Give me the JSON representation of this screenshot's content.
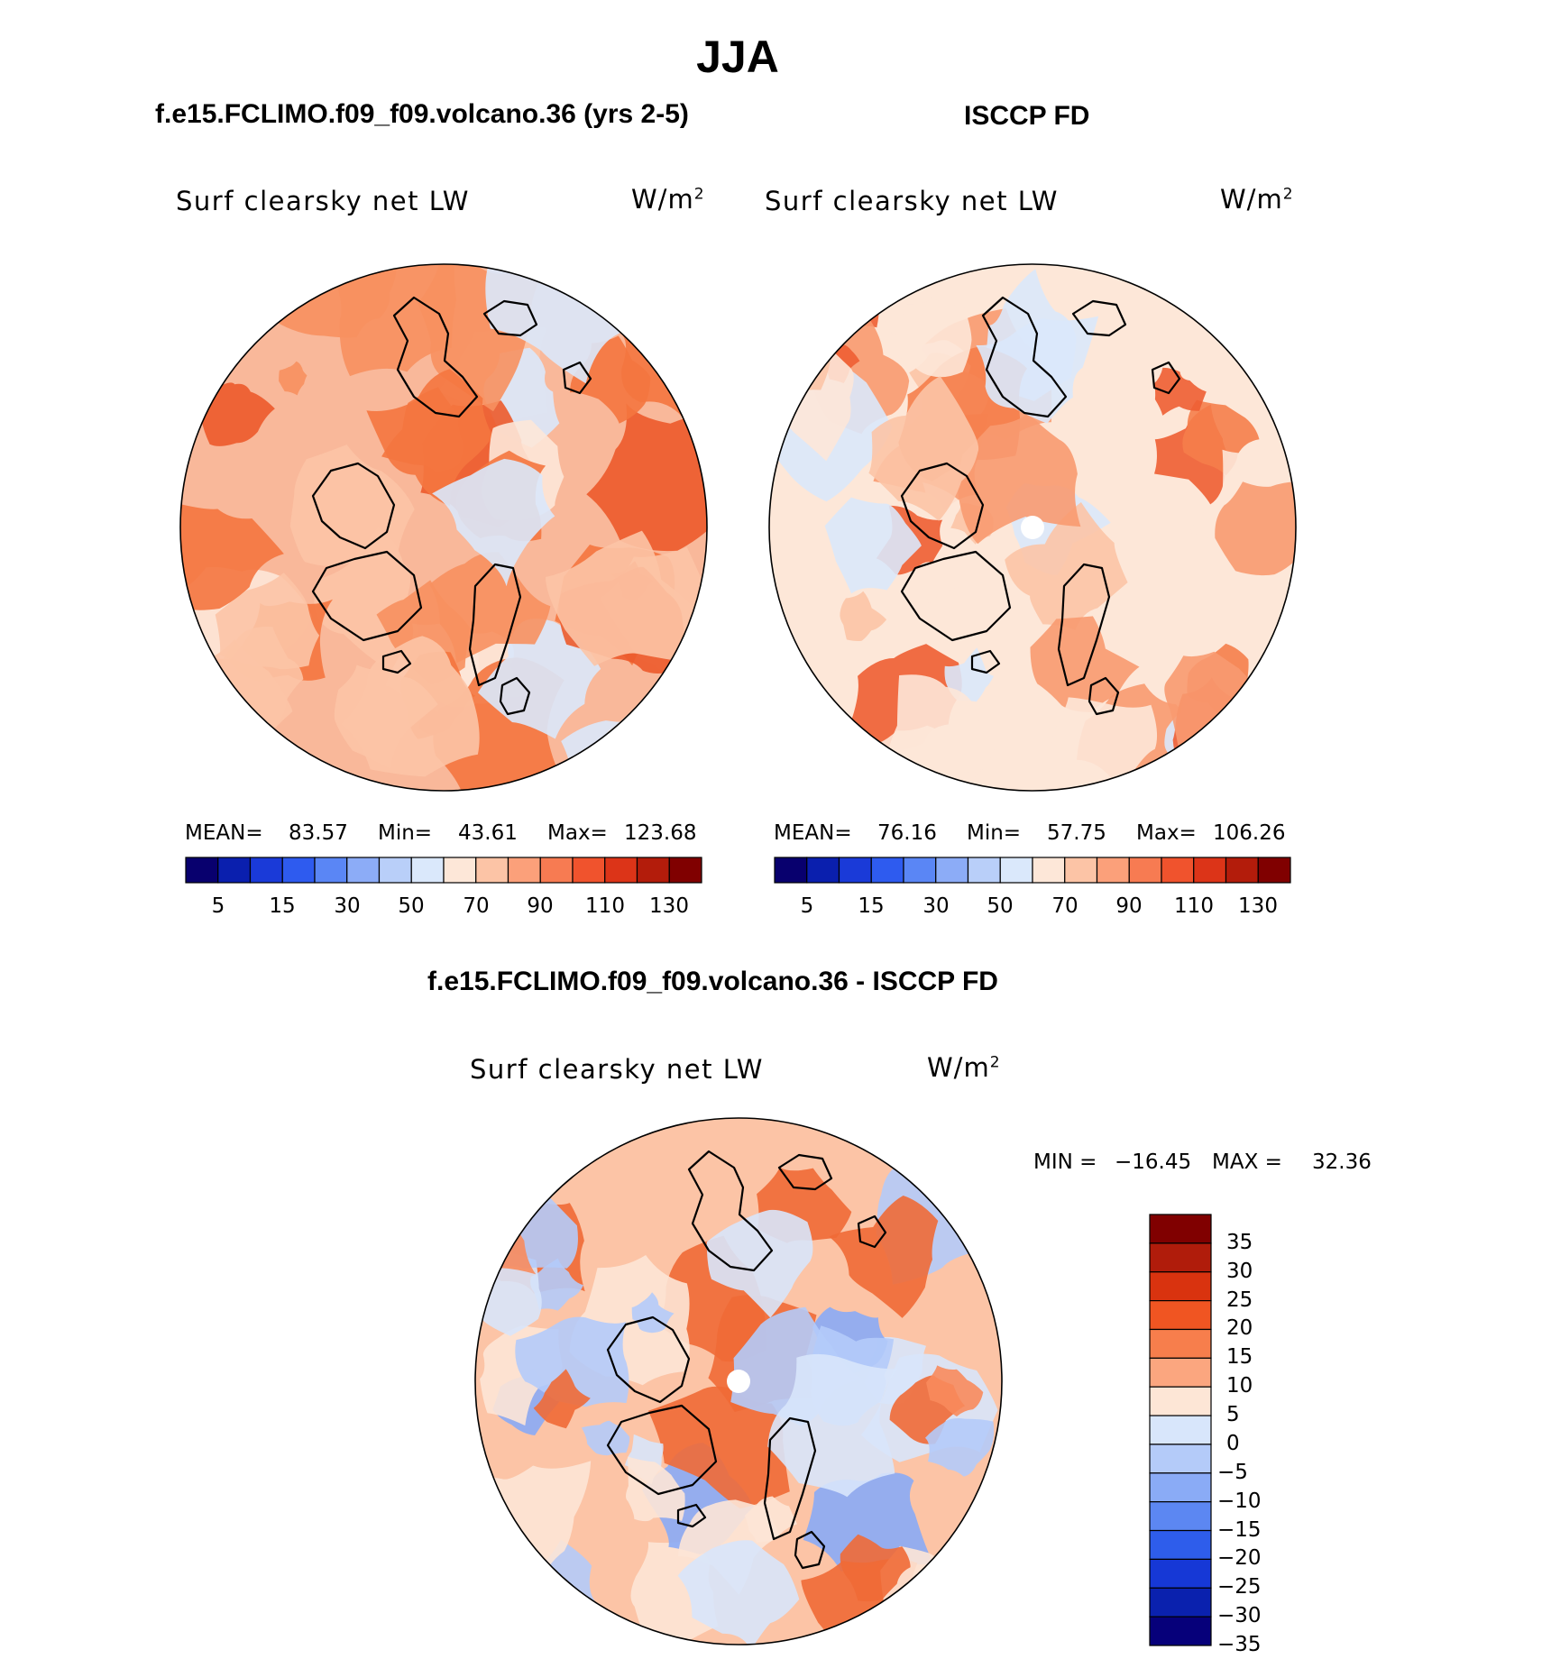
{
  "title": "JJA",
  "panels": [
    {
      "id": "model",
      "title": "f.e15.FCLIMO.f09_f09.volcano.36 (yrs 2-5)",
      "variable": "Surf clearsky net LW",
      "units": "W/m",
      "units_exponent": "2",
      "stats": {
        "mean_label": "MEAN=",
        "mean": "83.57",
        "min_label": "Min=",
        "min": "43.61",
        "max_label": "Max=",
        "max": "123.68"
      }
    },
    {
      "id": "obs",
      "title": "ISCCP FD",
      "variable": "Surf clearsky net LW",
      "units": "W/m",
      "units_exponent": "2",
      "stats": {
        "mean_label": "MEAN=",
        "mean": "76.16",
        "min_label": "Min=",
        "min": "57.75",
        "max_label": "Max=",
        "max": "106.26"
      }
    }
  ],
  "abs_colorbar": {
    "colors": [
      "#08006e",
      "#0a1fae",
      "#1a3ad8",
      "#2e5bef",
      "#5a86f5",
      "#8cacf7",
      "#b9cff9",
      "#dae8fb",
      "#fde7d8",
      "#fcc4a6",
      "#fba07a",
      "#f77b52",
      "#f0532d",
      "#dc3418",
      "#b31c0b",
      "#800000"
    ],
    "tick_labels": [
      "5",
      "15",
      "30",
      "50",
      "70",
      "90",
      "110",
      "130"
    ]
  },
  "difference": {
    "title": "f.e15.FCLIMO.f09_f09.volcano.36 - ISCCP FD",
    "variable": "Surf clearsky net LW",
    "units": "W/m",
    "units_exponent": "2",
    "min_label": "MIN =",
    "min": "−16.45",
    "max_label": "MAX =",
    "max": "32.36",
    "colorbar": {
      "colors_top_to_bottom": [
        "#800000",
        "#b01c0b",
        "#d9330f",
        "#f05522",
        "#f77e4c",
        "#fba67f",
        "#fde6d6",
        "#d8e6fb",
        "#b4cbf9",
        "#8aabf6",
        "#5c87f2",
        "#2e5deb",
        "#1638d6",
        "#0a21ae",
        "#06007a"
      ],
      "tick_labels": [
        "35",
        "30",
        "25",
        "20",
        "15",
        "10",
        "5",
        "0",
        "−5",
        "−10",
        "−15",
        "−20",
        "−25",
        "−30",
        "−35"
      ]
    }
  },
  "map_fill": {
    "model": {
      "base": "#f9b89a",
      "colors": [
        "#fcc4a6",
        "#f7905f",
        "#f4763f",
        "#ec5a2b",
        "#dae8fb",
        "#fde7d8"
      ]
    },
    "obs": {
      "base": "#fde7d8",
      "colors": [
        "#fcc4a6",
        "#f89a70",
        "#f57e4b",
        "#ee5e33",
        "#dae8fb",
        "#fde7d8"
      ]
    },
    "diff": {
      "base": "#fcc4a6",
      "colors": [
        "#fde6d6",
        "#f88b5c",
        "#f06a36",
        "#d8e6fb",
        "#b4cbf9",
        "#8aabf6"
      ]
    }
  }
}
